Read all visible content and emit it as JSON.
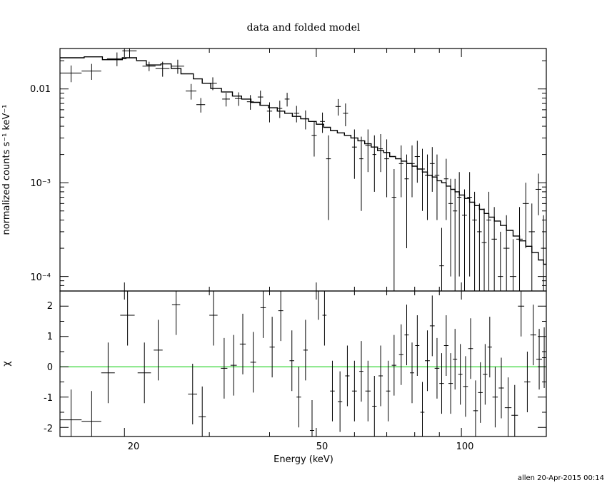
{
  "chart_data": [
    {
      "type": "scatter",
      "title": "data and folded model",
      "xlabel": "",
      "ylabel": "normalized counts s⁻¹ keV⁻¹",
      "xscale": "log",
      "yscale": "log",
      "xlim": [
        14.7,
        150
      ],
      "ylim": [
        7e-05,
        0.027
      ],
      "y_tick_labels": [
        {
          "value": 0.01,
          "label": "0.01"
        },
        {
          "value": 0.001,
          "label": "10⁻³"
        },
        {
          "value": 0.0001,
          "label": "10⁻⁴"
        }
      ],
      "series": [
        {
          "style": "data crosses (x bin half-width, y error)",
          "points": [
            [
              15.5,
              0.0148,
              0.8,
              0.003
            ],
            [
              17.1,
              0.0155,
              0.8,
              0.003
            ],
            [
              19.3,
              0.021,
              0.9,
              0.0035
            ],
            [
              20.5,
              0.0255,
              0.7,
              0.004
            ],
            [
              22.5,
              0.0175,
              0.7,
              0.002
            ],
            [
              24.0,
              0.0165,
              0.8,
              0.003
            ],
            [
              25.8,
              0.0175,
              0.8,
              0.003
            ],
            [
              27.5,
              0.0095,
              0.7,
              0.0018
            ],
            [
              28.8,
              0.0068,
              0.6,
              0.0012
            ],
            [
              30.5,
              0.0115,
              0.6,
              0.0018
            ],
            [
              32.5,
              0.0078,
              0.6,
              0.0013
            ],
            [
              34.5,
              0.0079,
              0.6,
              0.0013
            ],
            [
              36.5,
              0.0073,
              0.6,
              0.0013
            ],
            [
              38.3,
              0.0082,
              0.5,
              0.0014
            ],
            [
              40.0,
              0.0058,
              0.5,
              0.0014
            ],
            [
              42.0,
              0.0062,
              0.5,
              0.0013
            ],
            [
              43.5,
              0.0078,
              0.5,
              0.0013
            ],
            [
              45.5,
              0.0055,
              0.6,
              0.0011
            ],
            [
              47.5,
              0.0048,
              0.6,
              0.0011
            ],
            [
              49.5,
              0.0032,
              0.6,
              0.0013
            ],
            [
              51.5,
              0.0045,
              0.6,
              0.0011
            ],
            [
              53.0,
              0.0018,
              0.6,
              0.0014
            ],
            [
              55.5,
              0.0065,
              0.7,
              0.0013
            ],
            [
              57.5,
              0.0055,
              0.7,
              0.0015
            ],
            [
              60.0,
              0.0024,
              0.7,
              0.0013
            ],
            [
              62.0,
              0.0018,
              0.6,
              0.0013
            ],
            [
              64.0,
              0.0025,
              0.8,
              0.0012
            ],
            [
              66.0,
              0.002,
              0.6,
              0.0012
            ],
            [
              68.0,
              0.0023,
              0.7,
              0.001
            ],
            [
              70.0,
              0.0018,
              0.8,
              0.0011
            ],
            [
              72.5,
              0.0007,
              0.8,
              0.0007
            ],
            [
              75.0,
              0.0016,
              0.8,
              0.0009
            ],
            [
              77.0,
              0.0011,
              0.8,
              0.0009
            ],
            [
              79.0,
              0.0016,
              1.0,
              0.0009
            ],
            [
              81.0,
              0.0019,
              1.0,
              0.0009
            ],
            [
              83.0,
              0.0014,
              1.0,
              0.0009
            ],
            [
              85.0,
              0.0012,
              1.0,
              0.0008
            ],
            [
              87.0,
              0.0016,
              1.0,
              0.0008
            ],
            [
              89.0,
              0.0012,
              1.0,
              0.0008
            ],
            [
              91.0,
              0.00013,
              1.0,
              0.0002
            ],
            [
              93.0,
              0.0011,
              1.0,
              0.0007
            ],
            [
              95.0,
              0.0006,
              1.0,
              0.0005
            ],
            [
              97.0,
              0.0005,
              1.0,
              0.0006
            ],
            [
              99.0,
              0.0007,
              1.0,
              0.0006
            ],
            [
              101.5,
              0.00045,
              1.2,
              0.0004
            ],
            [
              104.0,
              0.0007,
              1.2,
              0.0006
            ],
            [
              106.5,
              0.0004,
              1.2,
              0.0004
            ],
            [
              109.0,
              0.0003,
              1.2,
              0.0003
            ],
            [
              111.5,
              0.00023,
              1.3,
              0.0003
            ],
            [
              114.0,
              0.0004,
              1.3,
              0.0004
            ],
            [
              117.0,
              0.00025,
              1.5,
              0.0003
            ],
            [
              120.5,
              0.0001,
              1.5,
              0.0002
            ],
            [
              124.0,
              0.0002,
              1.8,
              0.00025
            ],
            [
              128.0,
              0.0001,
              2.0,
              0.00015
            ],
            [
              132.0,
              0.00025,
              2.0,
              0.0003
            ],
            [
              136.0,
              0.0006,
              2.0,
              0.0004
            ],
            [
              140.0,
              0.0003,
              2.0,
              0.0003
            ],
            [
              144.5,
              0.00085,
              2.0,
              0.0004
            ],
            [
              148.0,
              0.0002,
              1.8,
              0.00025
            ]
          ]
        },
        {
          "style": "folded model step histogram",
          "points": [
            [
              14.7,
              0.0215
            ],
            [
              16.5,
              0.022
            ],
            [
              18.0,
              0.0205
            ],
            [
              19.8,
              0.0215
            ],
            [
              21.2,
              0.02
            ],
            [
              22.2,
              0.018
            ],
            [
              23.8,
              0.0185
            ],
            [
              25.0,
              0.0165
            ],
            [
              26.2,
              0.0145
            ],
            [
              27.8,
              0.0128
            ],
            [
              29.0,
              0.0115
            ],
            [
              30.2,
              0.0101
            ],
            [
              31.8,
              0.0093
            ],
            [
              33.5,
              0.0084
            ],
            [
              35.0,
              0.0078
            ],
            [
              36.6,
              0.0072
            ],
            [
              38.2,
              0.0067
            ],
            [
              39.8,
              0.0063
            ],
            [
              41.5,
              0.0058
            ],
            [
              43.0,
              0.0055
            ],
            [
              44.6,
              0.0051
            ],
            [
              46.4,
              0.0048
            ],
            [
              48.2,
              0.0045
            ],
            [
              50.0,
              0.0042
            ],
            [
              51.8,
              0.0039
            ],
            [
              53.5,
              0.0036
            ],
            [
              55.3,
              0.0034
            ],
            [
              57.2,
              0.0032
            ],
            [
              59.0,
              0.003
            ],
            [
              61.0,
              0.0028
            ],
            [
              63.0,
              0.0026
            ],
            [
              65.0,
              0.0024
            ],
            [
              67.0,
              0.0022
            ],
            [
              69.0,
              0.0021
            ],
            [
              71.0,
              0.0019
            ],
            [
              73.0,
              0.0018
            ],
            [
              75.0,
              0.0017
            ],
            [
              77.0,
              0.0016
            ],
            [
              79.0,
              0.0015
            ],
            [
              81.0,
              0.0014
            ],
            [
              83.0,
              0.0013
            ],
            [
              85.0,
              0.0012
            ],
            [
              87.0,
              0.00115
            ],
            [
              89.0,
              0.00105
            ],
            [
              91.0,
              0.001
            ],
            [
              93.0,
              0.00092
            ],
            [
              95.0,
              0.00085
            ],
            [
              97.0,
              0.0008
            ],
            [
              99.0,
              0.00074
            ],
            [
              101.5,
              0.00068
            ],
            [
              104.0,
              0.00062
            ],
            [
              106.5,
              0.00057
            ],
            [
              109.0,
              0.00052
            ],
            [
              111.5,
              0.00047
            ],
            [
              114.0,
              0.00043
            ],
            [
              117.0,
              0.00039
            ],
            [
              120.5,
              0.00035
            ],
            [
              124.0,
              0.00031
            ],
            [
              128.0,
              0.00027
            ],
            [
              132.0,
              0.00024
            ],
            [
              136.0,
              0.00021
            ],
            [
              140.0,
              0.00018
            ],
            [
              144.5,
              0.00015
            ],
            [
              148.0,
              0.000135
            ]
          ]
        }
      ]
    },
    {
      "type": "scatter",
      "xlabel": "Energy (keV)",
      "ylabel": "χ",
      "xscale": "log",
      "xlim": [
        14.7,
        150
      ],
      "ylim": [
        -2.3,
        2.5
      ],
      "x_tick_labels": [
        {
          "value": 20,
          "label": "20"
        },
        {
          "value": 50,
          "label": "50"
        },
        {
          "value": 100,
          "label": "100"
        }
      ],
      "y_tick_labels": [
        {
          "value": 2,
          "label": "2"
        },
        {
          "value": 1,
          "label": "1"
        },
        {
          "value": 0,
          "label": "0"
        },
        {
          "value": -1,
          "label": "-1"
        },
        {
          "value": -2,
          "label": "-2"
        }
      ],
      "reference_line": {
        "y": 0,
        "color": "#00cc00"
      },
      "series": [
        {
          "style": "residual crosses (x bin half-width, y error)",
          "points": [
            [
              15.5,
              -1.75,
              0.8,
              1.0
            ],
            [
              17.1,
              -1.8,
              0.8,
              1.0
            ],
            [
              18.5,
              -0.2,
              0.6,
              1.0
            ],
            [
              20.3,
              1.7,
              0.7,
              1.0
            ],
            [
              22.0,
              -0.2,
              0.7,
              1.0
            ],
            [
              23.5,
              0.55,
              0.5,
              1.0
            ],
            [
              25.6,
              2.05,
              0.5,
              1.0
            ],
            [
              27.7,
              -0.9,
              0.6,
              1.0
            ],
            [
              29.0,
              -1.65,
              0.5,
              1.0
            ],
            [
              30.6,
              1.7,
              0.6,
              1.0
            ],
            [
              32.2,
              -0.05,
              0.5,
              1.0
            ],
            [
              33.7,
              0.05,
              0.5,
              1.0
            ],
            [
              35.2,
              0.75,
              0.5,
              1.0
            ],
            [
              37.0,
              0.15,
              0.5,
              1.0
            ],
            [
              38.8,
              1.95,
              0.5,
              1.0
            ],
            [
              40.5,
              0.65,
              0.5,
              1.0
            ],
            [
              42.2,
              1.85,
              0.5,
              1.0
            ],
            [
              44.5,
              0.2,
              0.5,
              1.0
            ],
            [
              46.0,
              -1.0,
              0.5,
              1.0
            ],
            [
              47.5,
              0.55,
              0.5,
              1.0
            ],
            [
              49.0,
              -2.1,
              0.5,
              1.0
            ],
            [
              50.5,
              2.55,
              0.5,
              1.0
            ],
            [
              52.0,
              1.7,
              0.5,
              1.0
            ],
            [
              54.0,
              -0.8,
              0.6,
              1.0
            ],
            [
              56.0,
              -1.15,
              0.6,
              1.0
            ],
            [
              58.0,
              -0.3,
              0.6,
              1.0
            ],
            [
              60.0,
              -0.8,
              0.7,
              1.0
            ],
            [
              62.0,
              -0.15,
              0.6,
              1.0
            ],
            [
              64.0,
              -0.8,
              0.8,
              1.0
            ],
            [
              66.0,
              -1.3,
              0.7,
              1.0
            ],
            [
              68.0,
              -0.3,
              0.7,
              1.0
            ],
            [
              70.5,
              -0.8,
              0.7,
              1.0
            ],
            [
              72.5,
              0.05,
              0.8,
              1.0
            ],
            [
              75.0,
              0.4,
              0.8,
              1.0
            ],
            [
              77.0,
              1.05,
              0.8,
              1.0
            ],
            [
              79.0,
              -0.2,
              0.8,
              1.0
            ],
            [
              81.0,
              0.7,
              0.8,
              1.0
            ],
            [
              83.0,
              -1.5,
              0.8,
              1.0
            ],
            [
              85.0,
              0.2,
              1.0,
              1.0
            ],
            [
              87.0,
              1.35,
              1.0,
              1.0
            ],
            [
              89.0,
              -0.05,
              1.0,
              1.0
            ],
            [
              91.0,
              -0.55,
              1.0,
              1.0
            ],
            [
              93.0,
              0.7,
              1.0,
              1.0
            ],
            [
              95.0,
              -0.55,
              1.0,
              1.0
            ],
            [
              97.0,
              0.25,
              1.0,
              1.0
            ],
            [
              99.5,
              -0.25,
              1.0,
              1.0
            ],
            [
              102.0,
              -0.65,
              1.2,
              1.0
            ],
            [
              104.5,
              0.6,
              1.2,
              1.0
            ],
            [
              107.0,
              -1.45,
              1.2,
              1.0
            ],
            [
              109.5,
              -0.85,
              1.2,
              1.0
            ],
            [
              112.0,
              -0.25,
              1.2,
              1.0
            ],
            [
              114.5,
              0.65,
              1.2,
              1.0
            ],
            [
              117.5,
              -1.0,
              1.5,
              1.0
            ],
            [
              121.0,
              -0.7,
              1.5,
              1.0
            ],
            [
              125.0,
              -1.35,
              2.0,
              1.0
            ],
            [
              129.0,
              -1.6,
              2.0,
              1.0
            ],
            [
              133.0,
              2.0,
              2.0,
              1.0
            ],
            [
              137.0,
              -0.5,
              2.0,
              1.0
            ],
            [
              141.0,
              1.05,
              2.0,
              1.0
            ],
            [
              145.0,
              0.25,
              2.0,
              1.0
            ],
            [
              148.5,
              0.3,
              1.5,
              1.0
            ]
          ]
        }
      ]
    }
  ],
  "footer": "allen 20-Apr-2015 00:14"
}
